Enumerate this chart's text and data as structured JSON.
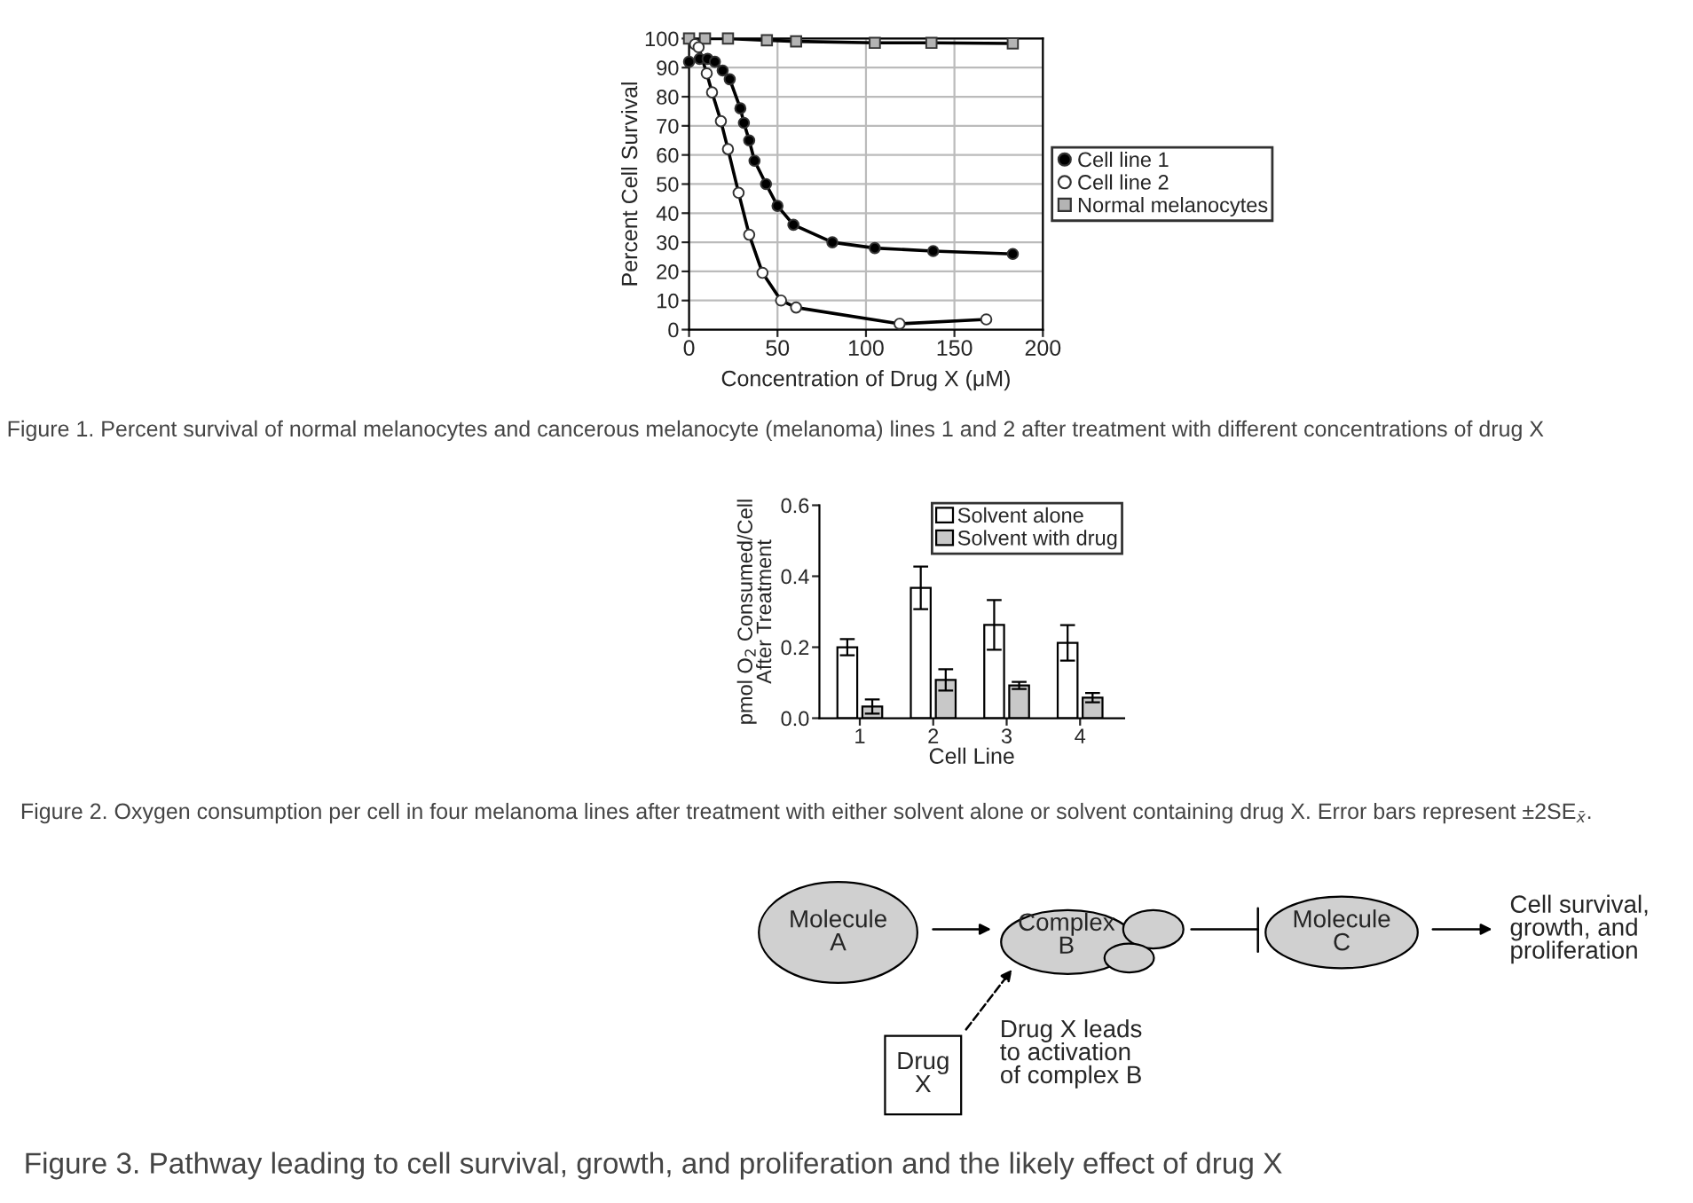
{
  "chart_data": [
    {
      "type": "line",
      "xlabel": "Concentration of Drug X (μM)",
      "ylabel": "Percent Cell Survival",
      "xlim": [
        0,
        200
      ],
      "ylim": [
        0,
        100
      ],
      "xticks": [
        0,
        50,
        100,
        150,
        200
      ],
      "yticks": [
        0,
        10,
        20,
        30,
        40,
        50,
        60,
        70,
        80,
        90,
        100
      ],
      "grid": true,
      "legend": "right",
      "line_style": "solid",
      "series": [
        {
          "name": "Cell line 1",
          "color": "#000000",
          "marker": "circle",
          "x": [
            0,
            6,
            10.5,
            14.6,
            19,
            23,
            29,
            31,
            34,
            37,
            43.5,
            50,
            59,
            81,
            105,
            138,
            183
          ],
          "values": [
            92,
            93,
            93,
            92,
            89,
            86,
            76,
            71,
            65,
            58,
            50,
            42.5,
            36,
            30,
            28,
            27,
            26
          ]
        },
        {
          "name": "Cell line 2",
          "color": "#ffffff",
          "marker": "circle",
          "x": [
            3.4,
            5.4,
            10,
            13,
            18,
            22,
            28,
            34,
            41.5,
            52,
            60.5,
            119,
            168
          ],
          "values": [
            98,
            97,
            88,
            81.5,
            71.6,
            62,
            47,
            32.6,
            19.5,
            10,
            7.6,
            2,
            3.5
          ]
        },
        {
          "name": "Normal melanocytes",
          "color": "#b4b4b4",
          "marker": "square",
          "x": [
            0,
            9,
            22,
            44,
            60.5,
            105,
            137,
            183
          ],
          "values": [
            100,
            100,
            100,
            99.4,
            99,
            98.5,
            98.5,
            98.3
          ]
        }
      ],
      "annotations": [
        "Figure 1. Percent survival of normal melanocytes and cancerous melanocyte (melanoma) lines 1 and 2 after treatment with different concentrations of drug X"
      ]
    },
    {
      "type": "bar",
      "categories": [
        "1",
        "2",
        "3",
        "4"
      ],
      "xlabel": "Cell Line",
      "ylabel": "pmol O$_{2}$ Consumed/Cell\nAfter Treatment",
      "ylim": [
        0,
        0.6
      ],
      "yticks": [
        {
          "value": 0,
          "label": "0.0"
        },
        0.2,
        0.4,
        0.6
      ],
      "grid": false,
      "legend": "top right",
      "series": [
        {
          "name": "Solvent alone",
          "color": "#ffffff",
          "values": [
            0.2,
            0.367,
            0.263,
            0.212
          ],
          "errors": [
            0.023,
            0.06,
            0.07,
            0.05
          ]
        },
        {
          "name": "Solvent with drug",
          "color": "#c8c8c8",
          "values": [
            0.033,
            0.108,
            0.092,
            0.058
          ],
          "errors": [
            0.02,
            0.03,
            0.01,
            0.013
          ]
        }
      ],
      "annotations": [
        "Figure 2. Oxygen consumption per cell in four melanoma lines after treatment with either solvent alone or solvent containing drug X. Error bars represent ±2SE$_{x̄}$."
      ]
    },
    {
      "type": "other",
      "annotations": [
        "Molecule\nA",
        "Complex\nB",
        "Molecule\nC",
        "Cell survival,\ngrowth, and\nproliferation",
        "Drug\nX",
        "Drug X leads\nto activation\nof complex B",
        "Figure 3. Pathway leading to cell survival, growth, and proliferation and the likely effect of drug X"
      ]
    }
  ]
}
